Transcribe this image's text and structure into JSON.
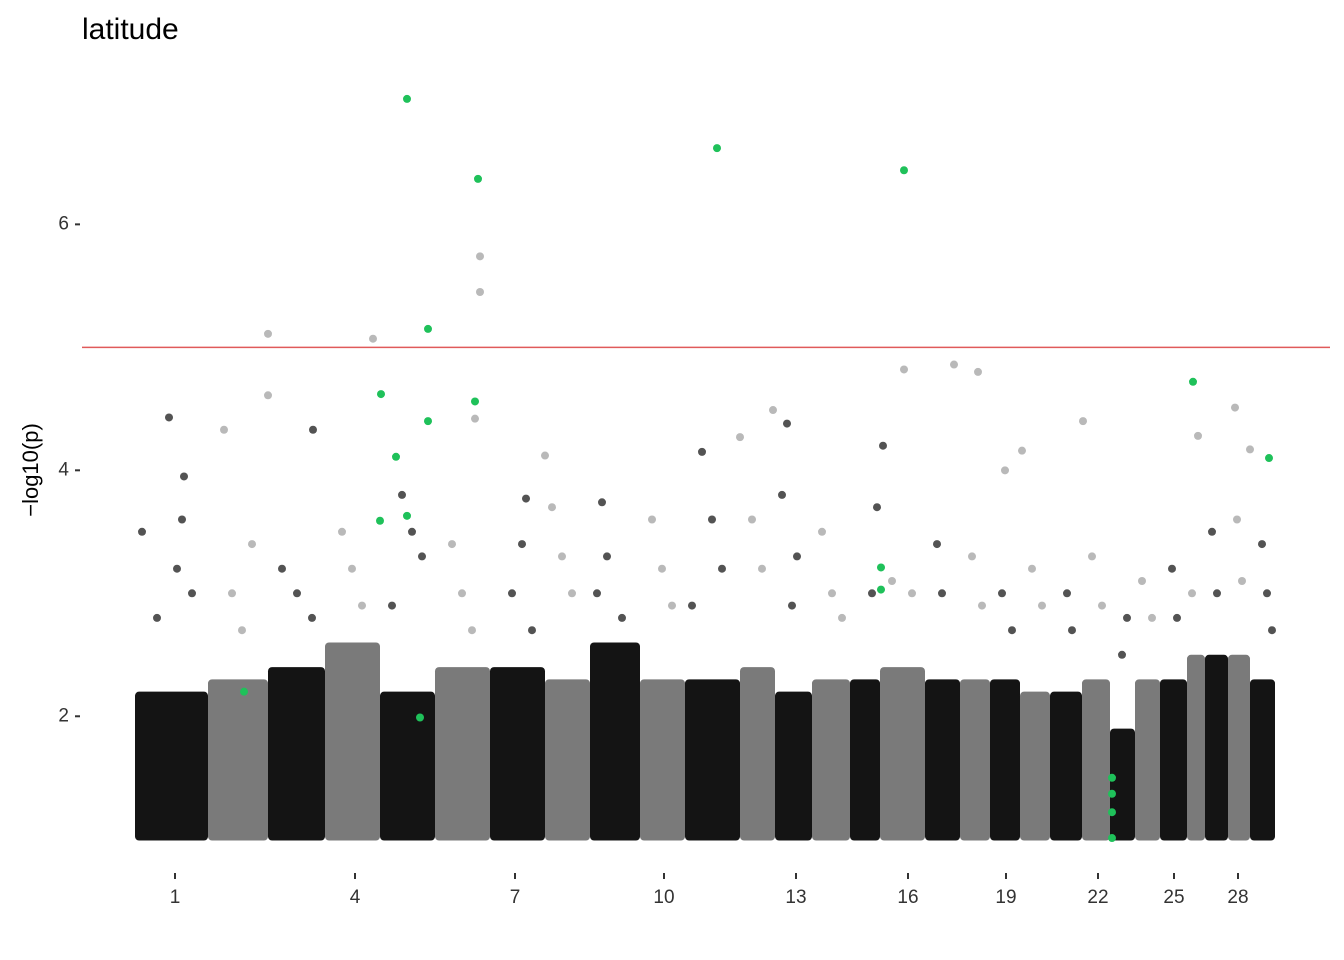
{
  "chart_data": {
    "type": "manhattan",
    "title": "latitude",
    "y_label": "−log10(p)",
    "xlim": [
      0,
      1248
    ],
    "ylim": [
      0.75,
      7.8
    ],
    "yticks": [
      2,
      4,
      6
    ],
    "xticks": [
      {
        "value": 93,
        "label": "1"
      },
      {
        "value": 273,
        "label": "4"
      },
      {
        "value": 433,
        "label": "7"
      },
      {
        "value": 582,
        "label": "10"
      },
      {
        "value": 714,
        "label": "13"
      },
      {
        "value": 826,
        "label": "16"
      },
      {
        "value": 924,
        "label": "19"
      },
      {
        "value": 1016,
        "label": "22"
      },
      {
        "value": 1092,
        "label": "25"
      },
      {
        "value": 1156,
        "label": "28"
      }
    ],
    "threshold": 5,
    "threshold_color": "#e05a5a",
    "band_colors": [
      "#141414",
      "#7a7a7a"
    ],
    "band_base": 0.99,
    "bands": [
      {
        "start": 53,
        "end": 126,
        "top": 2.2
      },
      {
        "start": 126,
        "end": 186,
        "top": 2.3
      },
      {
        "start": 186,
        "end": 243,
        "top": 2.4
      },
      {
        "start": 243,
        "end": 298,
        "top": 2.6
      },
      {
        "start": 298,
        "end": 353,
        "top": 2.2
      },
      {
        "start": 353,
        "end": 408,
        "top": 2.4
      },
      {
        "start": 408,
        "end": 463,
        "top": 2.4
      },
      {
        "start": 463,
        "end": 508,
        "top": 2.3
      },
      {
        "start": 508,
        "end": 558,
        "top": 2.6
      },
      {
        "start": 558,
        "end": 603,
        "top": 2.3
      },
      {
        "start": 603,
        "end": 658,
        "top": 2.3
      },
      {
        "start": 658,
        "end": 693,
        "top": 2.4
      },
      {
        "start": 693,
        "end": 730,
        "top": 2.2
      },
      {
        "start": 730,
        "end": 768,
        "top": 2.3
      },
      {
        "start": 768,
        "end": 798,
        "top": 2.3
      },
      {
        "start": 798,
        "end": 843,
        "top": 2.4
      },
      {
        "start": 843,
        "end": 878,
        "top": 2.3
      },
      {
        "start": 878,
        "end": 908,
        "top": 2.3
      },
      {
        "start": 908,
        "end": 938,
        "top": 2.3
      },
      {
        "start": 938,
        "end": 968,
        "top": 2.2
      },
      {
        "start": 968,
        "end": 1000,
        "top": 2.2
      },
      {
        "start": 1000,
        "end": 1028,
        "top": 2.3
      },
      {
        "start": 1028,
        "end": 1053,
        "top": 1.9
      },
      {
        "start": 1053,
        "end": 1078,
        "top": 2.3
      },
      {
        "start": 1078,
        "end": 1105,
        "top": 2.3
      },
      {
        "start": 1105,
        "end": 1123,
        "top": 2.5
      },
      {
        "start": 1123,
        "end": 1146,
        "top": 2.5
      },
      {
        "start": 1146,
        "end": 1168,
        "top": 2.5
      },
      {
        "start": 1168,
        "end": 1193,
        "top": 2.3
      }
    ],
    "series": [
      {
        "color": "#8a8a8a",
        "opacity": 0.6,
        "x": [
          186,
          291,
          398,
          398,
          186,
          822,
          896,
          1153,
          1001,
          691,
          393,
          1116,
          142,
          658,
          940,
          923,
          463,
          1168,
          872,
          150,
          160,
          170,
          260,
          270,
          280,
          370,
          380,
          390,
          470,
          480,
          490,
          570,
          580,
          590,
          670,
          680,
          740,
          750,
          760,
          810,
          830,
          890,
          900,
          950,
          960,
          1010,
          1020,
          1060,
          1070,
          1110,
          1155,
          1160
        ],
        "values": [
          5.11,
          5.07,
          5.74,
          5.45,
          4.61,
          4.82,
          4.8,
          4.51,
          4.4,
          4.49,
          4.42,
          4.28,
          4.33,
          4.27,
          4.16,
          4.0,
          4.12,
          4.17,
          4.86,
          3.0,
          2.7,
          3.4,
          3.5,
          3.2,
          2.9,
          3.4,
          3.0,
          2.7,
          3.7,
          3.3,
          3.0,
          3.6,
          3.2,
          2.9,
          3.6,
          3.2,
          3.5,
          3.0,
          2.8,
          3.1,
          3.0,
          3.3,
          2.9,
          3.2,
          2.9,
          3.3,
          2.9,
          3.1,
          2.8,
          3.0,
          3.6,
          3.1
        ]
      },
      {
        "color": "#1a1a1a",
        "opacity": 0.75,
        "x": [
          87,
          231,
          102,
          100,
          95,
          60,
          110,
          75,
          200,
          215,
          230,
          320,
          330,
          340,
          310,
          444,
          440,
          430,
          450,
          520,
          525,
          515,
          540,
          620,
          630,
          640,
          610,
          705,
          700,
          715,
          710,
          801,
          795,
          790,
          855,
          860,
          920,
          930,
          985,
          990,
          1045,
          1040,
          1090,
          1095,
          1130,
          1135,
          1180,
          1185,
          1190
        ],
        "values": [
          4.43,
          4.33,
          3.95,
          3.6,
          3.2,
          3.5,
          3.0,
          2.8,
          3.2,
          3.0,
          2.8,
          3.8,
          3.5,
          3.3,
          2.9,
          3.77,
          3.4,
          3.0,
          2.7,
          3.74,
          3.3,
          3.0,
          2.8,
          4.15,
          3.6,
          3.2,
          2.9,
          4.38,
          3.8,
          3.3,
          2.9,
          4.2,
          3.7,
          3.0,
          3.4,
          3.0,
          3.0,
          2.7,
          3.0,
          2.7,
          2.8,
          2.5,
          3.2,
          2.8,
          3.5,
          3.0,
          3.4,
          3.0,
          2.7
        ]
      },
      {
        "color": "#1fc15a",
        "opacity": 1,
        "x": [
          325,
          396,
          635,
          822,
          346,
          299,
          393,
          346,
          314,
          298,
          325,
          162,
          338,
          799,
          799,
          1111,
          1187,
          1030,
          1030,
          1030,
          1030
        ],
        "values": [
          7.02,
          6.37,
          6.62,
          6.44,
          5.15,
          4.62,
          4.56,
          4.4,
          4.11,
          3.59,
          3.63,
          2.2,
          1.99,
          3.21,
          3.03,
          4.72,
          4.1,
          1.5,
          1.37,
          1.22,
          1.01
        ]
      }
    ]
  }
}
